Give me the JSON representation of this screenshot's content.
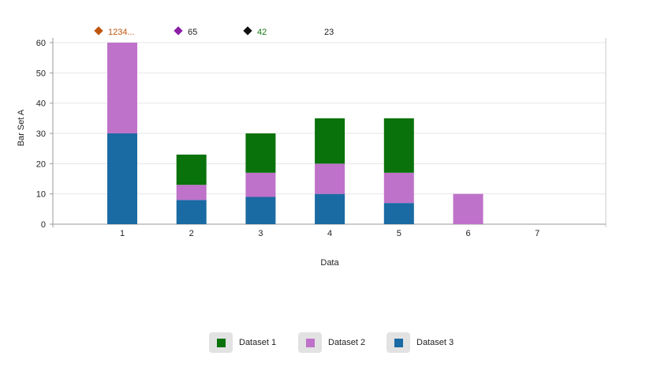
{
  "chart_data": {
    "type": "bar",
    "stacked": true,
    "categories": [
      "1",
      "2",
      "3",
      "4",
      "5",
      "6",
      "7"
    ],
    "series": [
      {
        "name": "Dataset 3",
        "color": "#1a6aa3",
        "values": [
          30,
          8,
          9,
          10,
          7,
          0,
          0
        ]
      },
      {
        "name": "Dataset 2",
        "color": "#bf72c9",
        "values": [
          30,
          5,
          8,
          10,
          10,
          10,
          0
        ]
      },
      {
        "name": "Dataset 1",
        "color": "#0a720a",
        "values": [
          0,
          10,
          13,
          15,
          18,
          0,
          0
        ]
      }
    ],
    "xlabel": "Data",
    "ylabel": "Bar Set A",
    "ylim": [
      0,
      60
    ],
    "yticks": [
      "0",
      "10",
      "20",
      "30",
      "40",
      "50",
      "60"
    ],
    "grid": true,
    "legend_position": "bottom-center"
  },
  "info_row": [
    {
      "marker": "diamond",
      "color": "#c0560e",
      "text": "1234...",
      "text_color": "#c0560e"
    },
    {
      "marker": "diamond",
      "color": "#8a1fa3",
      "text": "65",
      "text_color": "#222222"
    },
    {
      "marker": "diamond",
      "color": "#111111",
      "text": "42",
      "text_color": "#157a15"
    },
    {
      "marker": "none",
      "color": "",
      "text": "23",
      "text_color": "#222222"
    }
  ],
  "legend": [
    {
      "label": "Dataset 1",
      "color": "#0a720a"
    },
    {
      "label": "Dataset 2",
      "color": "#bf72c9"
    },
    {
      "label": "Dataset 3",
      "color": "#1a6aa3"
    }
  ]
}
